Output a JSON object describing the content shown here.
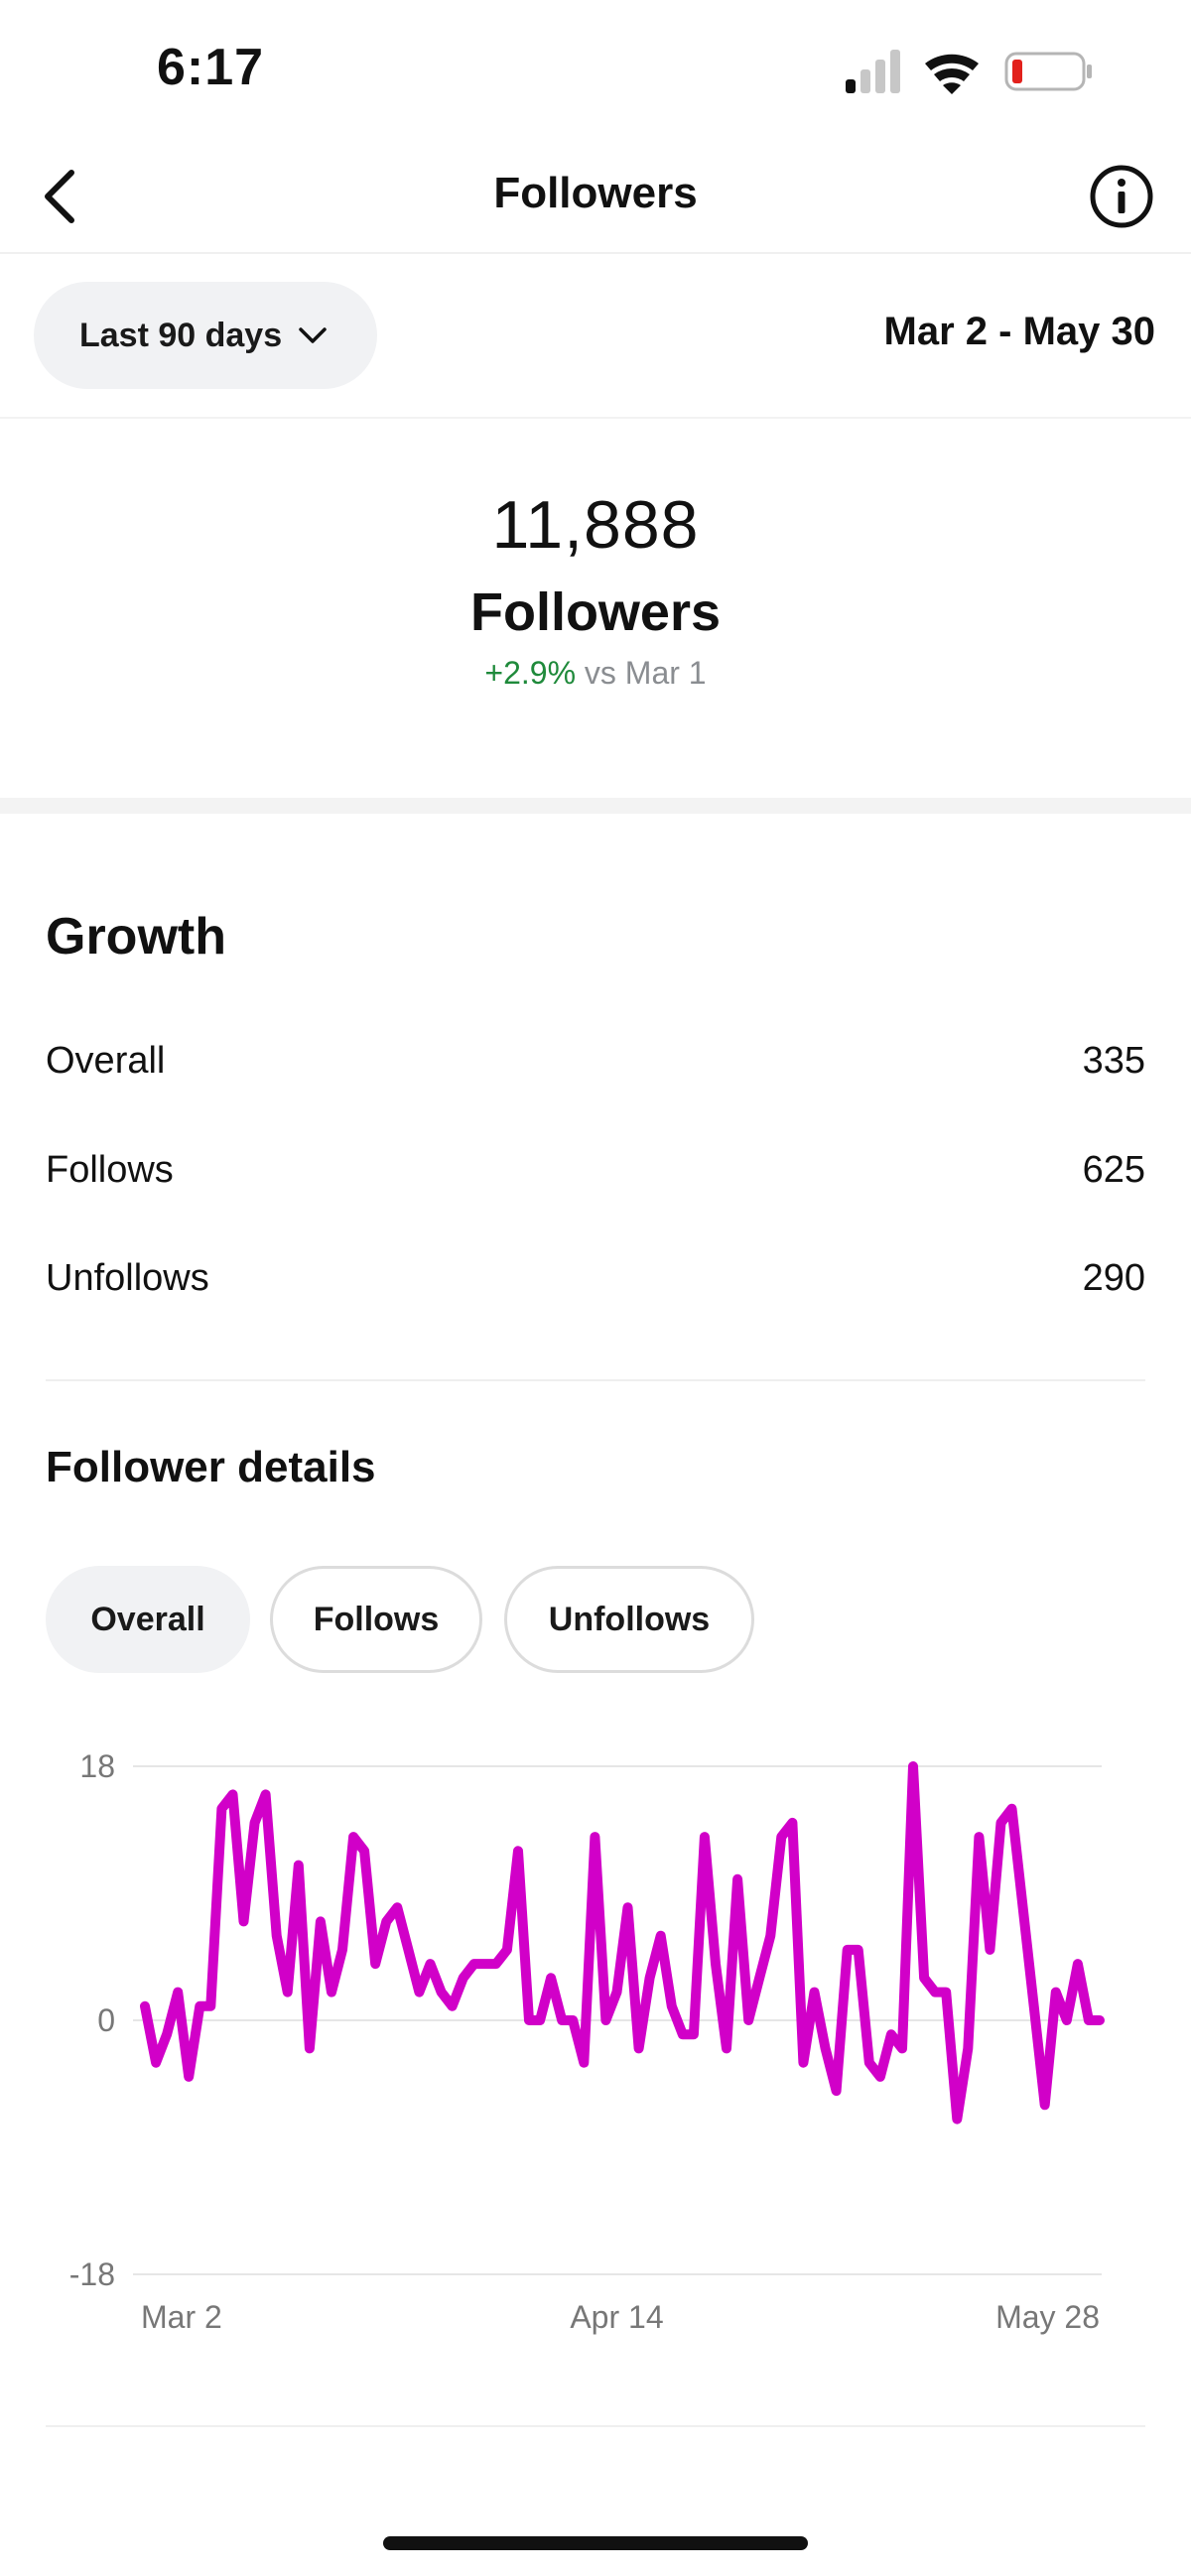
{
  "status_bar": {
    "time": "6:17"
  },
  "nav": {
    "title": "Followers"
  },
  "filter": {
    "range_label": "Last 90 days",
    "date_range": "Mar 2 - May 30"
  },
  "summary": {
    "count": "11,888",
    "label": "Followers",
    "change_pct": "+2.9%",
    "change_suffix": "vs Mar 1"
  },
  "growth": {
    "title": "Growth",
    "rows": [
      {
        "label": "Overall",
        "value": "335"
      },
      {
        "label": "Follows",
        "value": "625"
      },
      {
        "label": "Unfollows",
        "value": "290"
      }
    ]
  },
  "details": {
    "title": "Follower details",
    "chips": [
      {
        "label": "Overall",
        "active": true
      },
      {
        "label": "Follows",
        "active": false
      },
      {
        "label": "Unfollows",
        "active": false
      }
    ]
  },
  "colors": {
    "accent_line": "#d100c8",
    "positive": "#1f8a3b"
  },
  "chart_data": {
    "type": "line",
    "y_ticks": [
      "18",
      "0",
      "-18"
    ],
    "ylim": [
      -18,
      18
    ],
    "x_ticks": [
      "Mar 2",
      "Apr 14",
      "May 28"
    ],
    "x_tick_index": [
      0,
      43,
      87
    ],
    "grid": true,
    "series": [
      {
        "values": [
          1,
          -3,
          -1,
          2,
          -4,
          1,
          1,
          15,
          16,
          7,
          14,
          16,
          6,
          2,
          11,
          -2,
          7,
          2,
          5,
          13,
          12,
          4,
          7,
          8,
          5,
          2,
          4,
          2,
          1,
          3,
          4,
          4,
          4,
          5,
          12,
          0,
          0,
          3,
          0,
          0,
          -3,
          13,
          0,
          2,
          8,
          -2,
          3,
          6,
          1,
          -1,
          -1,
          13,
          4,
          -2,
          10,
          0,
          3,
          6,
          13,
          14,
          -3,
          2,
          -2,
          -5,
          5,
          5,
          -3,
          -4,
          -1,
          -2,
          18,
          3,
          2,
          2,
          -7,
          -2,
          13,
          5,
          14,
          15,
          8,
          1,
          -6,
          2,
          0,
          4,
          0,
          0
        ]
      }
    ]
  }
}
